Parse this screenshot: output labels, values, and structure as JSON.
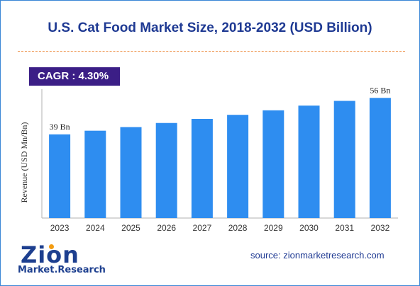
{
  "header": {
    "title": "U.S. Cat Food Market Size, 2018-2032 (USD Billion)",
    "cagr": "CAGR : 4.30%"
  },
  "footer": {
    "logo_main": "Zion",
    "logo_sub": "Market.Research",
    "source": "source: zionmarketresearch.com"
  },
  "colors": {
    "bar": "#2e8df0",
    "title": "#1f3a93",
    "cagr_bg": "#3b1e86",
    "divider": "#f0a060"
  },
  "chart_data": {
    "type": "bar",
    "categories": [
      "2023",
      "2024",
      "2025",
      "2026",
      "2027",
      "2028",
      "2029",
      "2030",
      "2031",
      "2032"
    ],
    "values": [
      39,
      40.7,
      42.4,
      44.3,
      46.2,
      48.1,
      50.2,
      52.4,
      54.6,
      56
    ],
    "data_labels": [
      {
        "index": 0,
        "text": "39 Bn"
      },
      {
        "index": 9,
        "text": "56 Bn"
      }
    ],
    "title": "U.S. Cat Food Market Size, 2018-2032 (USD Billion)",
    "xlabel": "",
    "ylabel": "Revenue (USD Mn/Bn)",
    "ylim": [
      0,
      65
    ],
    "grid": false,
    "legend": "none"
  }
}
